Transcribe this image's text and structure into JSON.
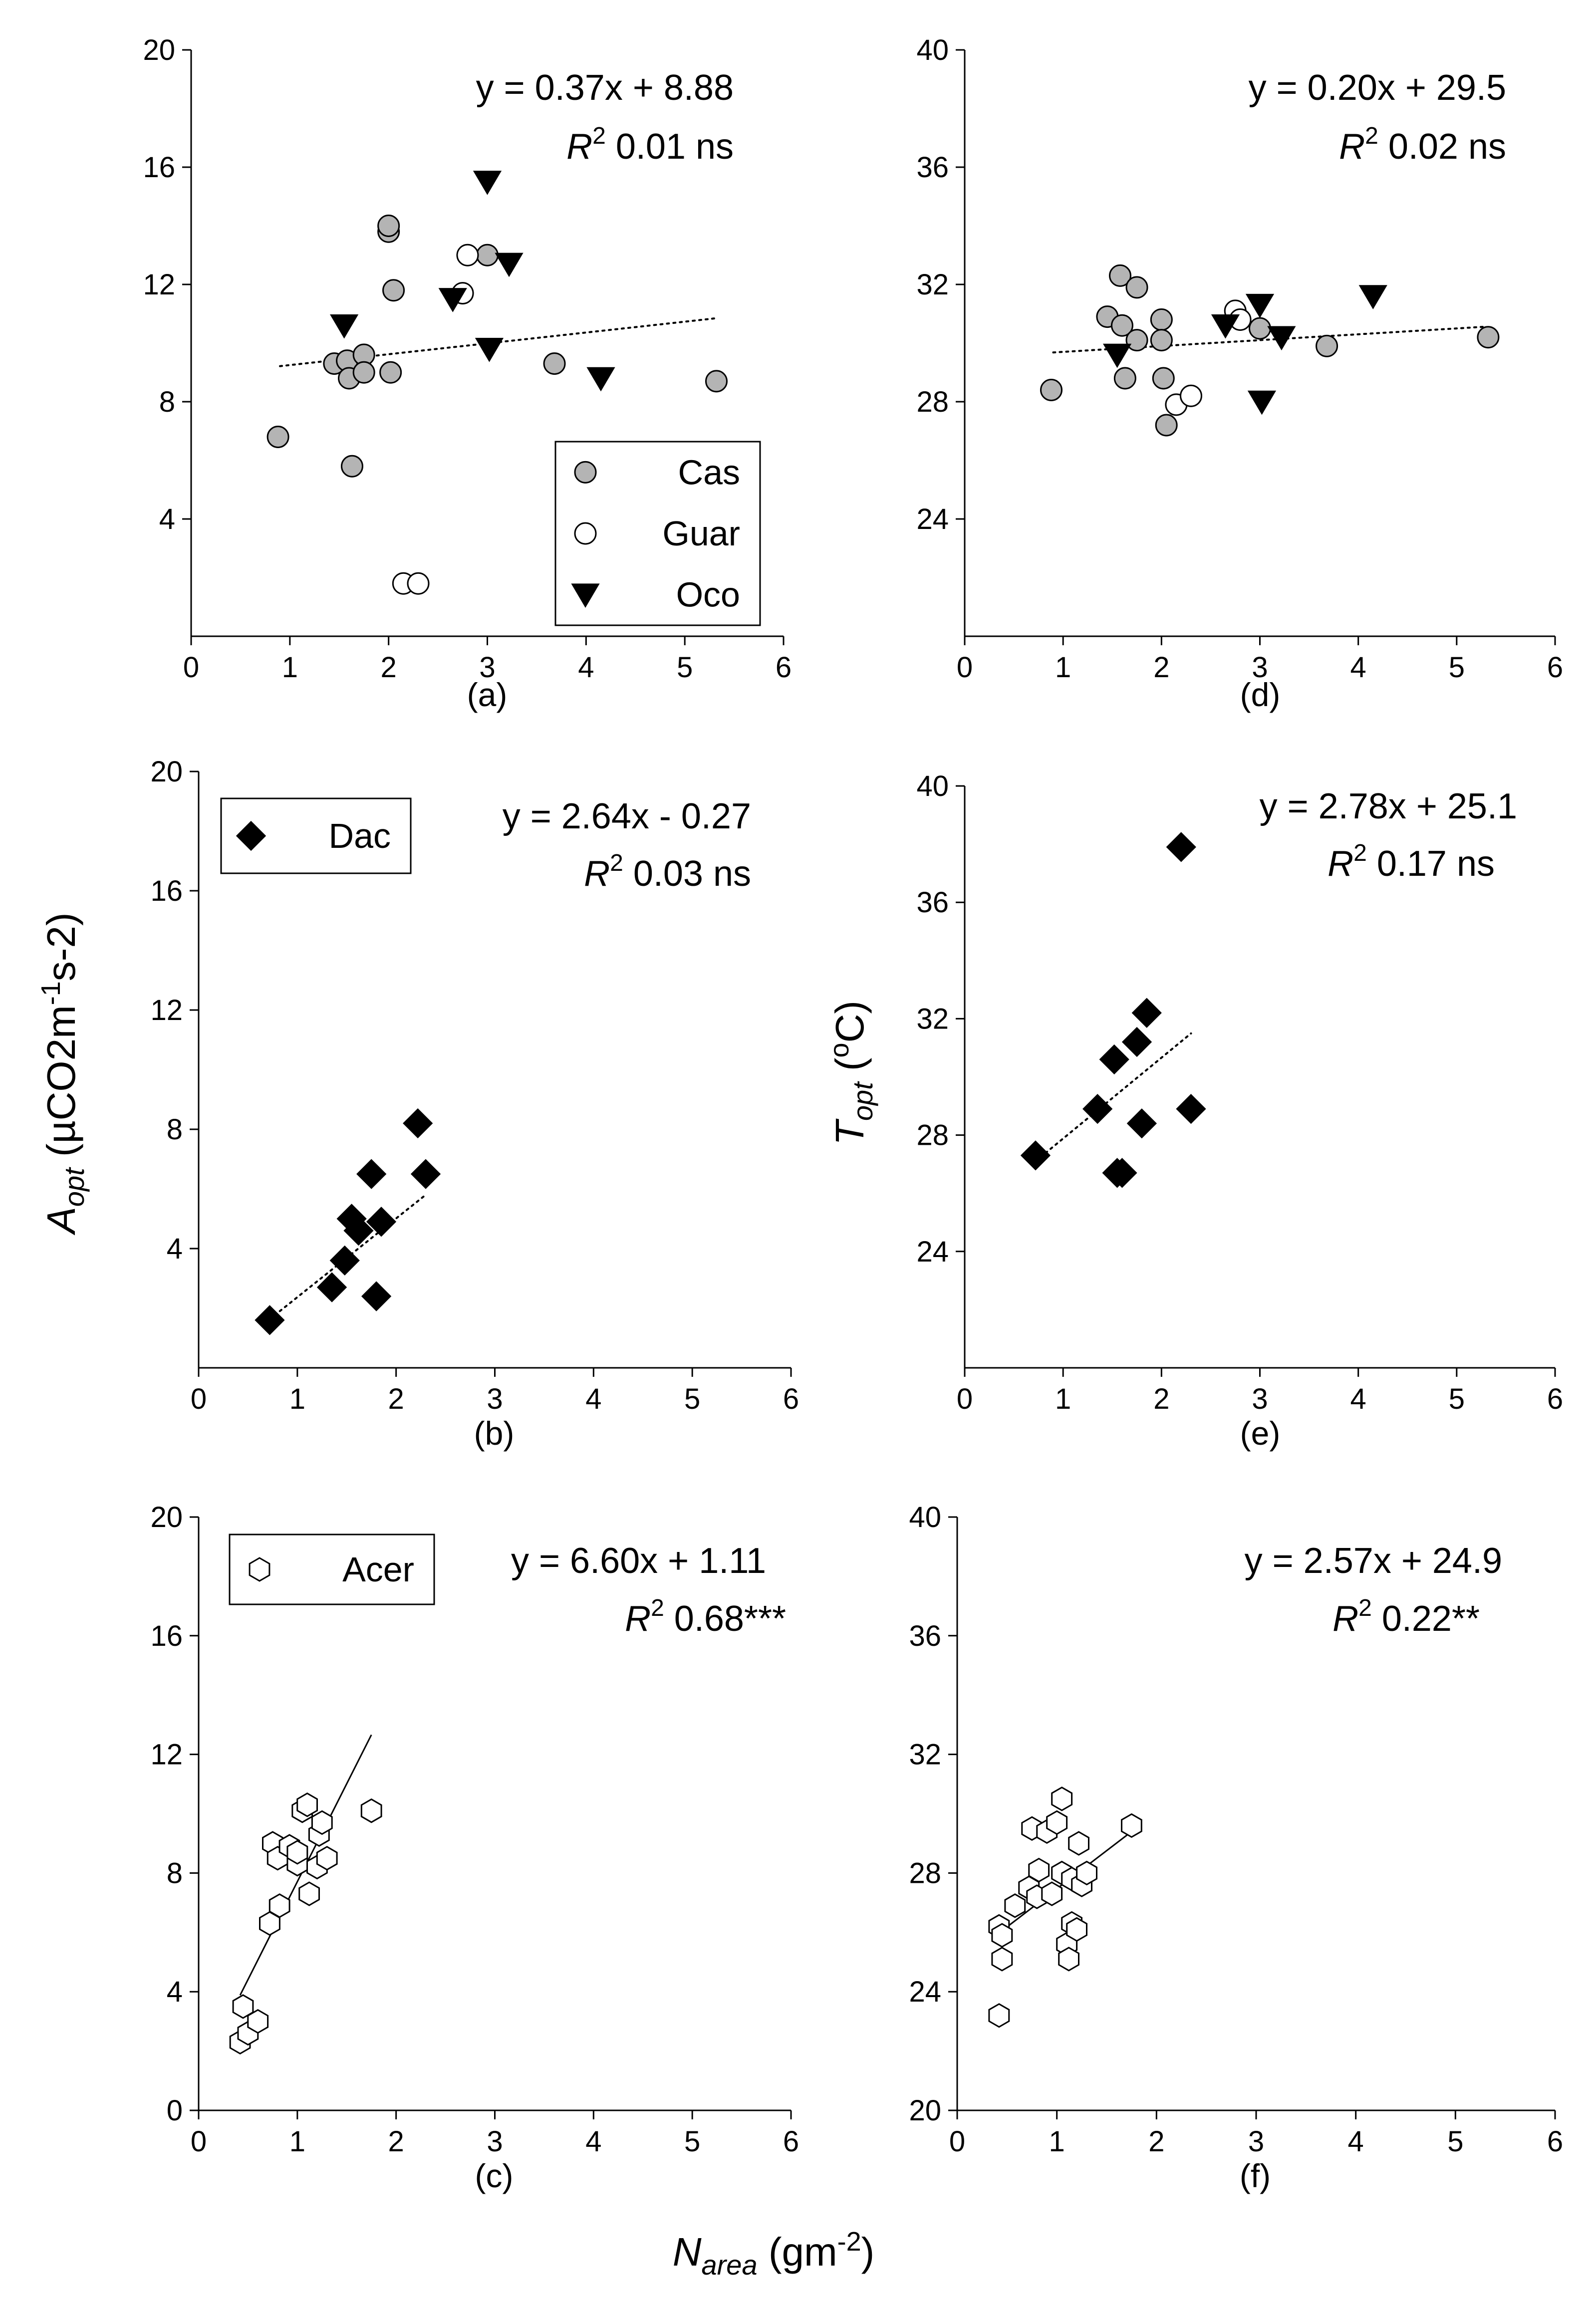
{
  "figure": {
    "shared_xlabel": {
      "main": "N",
      "sub": "area",
      "rest": " (gm",
      "sup": "-2",
      "close": ")"
    }
  },
  "ylabels": {
    "aopt": {
      "main": "A",
      "sub": "opt",
      "rest": " (µCO2m",
      "sup1": "-1",
      "mid": "s-2)"
    },
    "topt": {
      "main": "T",
      "sub": "opt",
      "rest": " (",
      "sup": "o",
      "tail": "C)"
    }
  },
  "series_styles": {
    "Cas": {
      "marker": "circle",
      "fill": "#b4b4b4",
      "stroke": "#000000"
    },
    "Guar": {
      "marker": "circle",
      "fill": "#ffffff",
      "stroke": "#000000"
    },
    "Oco": {
      "marker": "triangle-down",
      "fill": "#000000",
      "stroke": "#000000"
    },
    "Dac": {
      "marker": "diamond",
      "fill": "#000000",
      "stroke": "#000000"
    },
    "Acer": {
      "marker": "hexagon",
      "fill": "#ffffff",
      "stroke": "#000000"
    }
  },
  "chart_data": [
    {
      "id": "a",
      "type": "scatter",
      "panel_label": "(a)",
      "ylabel_key": "aopt",
      "xlim": [
        0,
        6
      ],
      "ylim": [
        0,
        20
      ],
      "xticks": [
        0,
        1,
        2,
        3,
        4,
        5,
        6
      ],
      "yticks": [
        4,
        8,
        12,
        16,
        20
      ],
      "equation": "y = 0.37x + 8.88",
      "r2_label": "R",
      "r2_sup": "2",
      "r2_value": " 0.01 ns",
      "fit": {
        "style": "dotted",
        "x": [
          0.9,
          5.3
        ]
      },
      "legend": {
        "position": "bottom-right",
        "entries": [
          "Cas",
          "Guar",
          "Oco"
        ]
      },
      "series": [
        {
          "name": "Cas",
          "points": [
            [
              0.88,
              6.8
            ],
            [
              1.45,
              9.3
            ],
            [
              1.58,
              9.4
            ],
            [
              1.6,
              8.8
            ],
            [
              1.63,
              5.8
            ],
            [
              1.75,
              9.6
            ],
            [
              1.75,
              9.0
            ],
            [
              2.0,
              13.8
            ],
            [
              2.0,
              14.0
            ],
            [
              2.02,
              9.0
            ],
            [
              2.05,
              11.8
            ],
            [
              3.0,
              13.0
            ],
            [
              3.68,
              9.3
            ],
            [
              5.32,
              8.7
            ]
          ]
        },
        {
          "name": "Guar",
          "points": [
            [
              2.15,
              1.8
            ],
            [
              2.3,
              1.8
            ],
            [
              2.75,
              11.7
            ],
            [
              2.8,
              13.0
            ]
          ]
        },
        {
          "name": "Oco",
          "points": [
            [
              1.55,
              10.6
            ],
            [
              2.65,
              11.5
            ],
            [
              3.0,
              15.5
            ],
            [
              3.02,
              9.8
            ],
            [
              3.22,
              12.7
            ],
            [
              4.15,
              8.8
            ]
          ]
        }
      ]
    },
    {
      "id": "d",
      "type": "scatter",
      "panel_label": "(d)",
      "ylabel_key": null,
      "xlim": [
        0,
        6
      ],
      "ylim": [
        20,
        40
      ],
      "xticks": [
        0,
        1,
        2,
        3,
        4,
        5,
        6
      ],
      "yticks": [
        24,
        28,
        32,
        36,
        40
      ],
      "equation": "y = 0.20x + 29.5",
      "r2_label": "R",
      "r2_sup": "2",
      "r2_value": " 0.02 ns",
      "fit": {
        "style": "dotted",
        "x": [
          0.9,
          5.3
        ]
      },
      "legend": null,
      "series": [
        {
          "name": "Cas",
          "points": [
            [
              0.88,
              28.4
            ],
            [
              1.45,
              30.9
            ],
            [
              1.58,
              32.3
            ],
            [
              1.6,
              30.6
            ],
            [
              1.63,
              28.8
            ],
            [
              1.75,
              31.9
            ],
            [
              1.75,
              30.1
            ],
            [
              2.0,
              30.8
            ],
            [
              2.0,
              30.1
            ],
            [
              2.02,
              28.8
            ],
            [
              2.05,
              27.2
            ],
            [
              3.0,
              30.5
            ],
            [
              3.68,
              29.9
            ],
            [
              5.32,
              30.2
            ]
          ]
        },
        {
          "name": "Guar",
          "points": [
            [
              2.15,
              27.9
            ],
            [
              2.3,
              28.2
            ],
            [
              2.75,
              31.1
            ],
            [
              2.8,
              30.8
            ]
          ]
        },
        {
          "name": "Oco",
          "points": [
            [
              1.55,
              29.6
            ],
            [
              2.65,
              30.6
            ],
            [
              3.0,
              31.3
            ],
            [
              3.02,
              28.0
            ],
            [
              3.22,
              30.2
            ],
            [
              4.15,
              31.6
            ]
          ]
        }
      ]
    },
    {
      "id": "b",
      "type": "scatter",
      "panel_label": "(b)",
      "ylabel_key": "aopt",
      "xlim": [
        0,
        6
      ],
      "ylim": [
        0,
        20
      ],
      "xticks": [
        0,
        1,
        2,
        3,
        4,
        5,
        6
      ],
      "yticks": [
        4,
        8,
        12,
        16,
        20
      ],
      "equation": "y = 2.64x - 0.27",
      "r2_label": "R",
      "r2_sup": "2",
      "r2_value": " 0.03 ns",
      "fit": {
        "style": "dotted",
        "x": [
          0.72,
          2.3
        ]
      },
      "legend": {
        "position": "top-left",
        "entries": [
          "Dac"
        ]
      },
      "series": [
        {
          "name": "Dac",
          "points": [
            [
              0.72,
              1.6
            ],
            [
              1.35,
              2.7
            ],
            [
              1.48,
              3.6
            ],
            [
              1.55,
              5.0
            ],
            [
              1.62,
              4.6
            ],
            [
              1.75,
              6.5
            ],
            [
              1.8,
              2.4
            ],
            [
              1.85,
              4.9
            ],
            [
              2.22,
              8.2
            ],
            [
              2.3,
              6.5
            ]
          ]
        }
      ]
    },
    {
      "id": "e",
      "type": "scatter",
      "panel_label": "(e)",
      "ylabel_key": "topt",
      "xlim": [
        0,
        6
      ],
      "ylim": [
        20,
        40
      ],
      "xticks": [
        0,
        1,
        2,
        3,
        4,
        5,
        6
      ],
      "yticks": [
        24,
        28,
        32,
        36,
        40
      ],
      "equation": "y = 2.78x + 25.1",
      "r2_label": "R",
      "r2_sup": "2",
      "r2_value": " 0.17 ns",
      "fit": {
        "style": "dotted",
        "x": [
          0.72,
          2.3
        ]
      },
      "legend": null,
      "series": [
        {
          "name": "Dac",
          "points": [
            [
              0.72,
              27.3
            ],
            [
              1.35,
              28.9
            ],
            [
              1.52,
              30.6
            ],
            [
              1.55,
              26.7
            ],
            [
              1.6,
              26.7
            ],
            [
              1.75,
              31.2
            ],
            [
              1.8,
              28.4
            ],
            [
              1.85,
              32.2
            ],
            [
              2.2,
              37.9
            ],
            [
              2.3,
              28.9
            ]
          ]
        }
      ]
    },
    {
      "id": "c",
      "type": "scatter",
      "panel_label": "(c)",
      "ylabel_key": null,
      "xlim": [
        0,
        6
      ],
      "ylim": [
        0,
        20
      ],
      "xticks": [
        0,
        1,
        2,
        3,
        4,
        5,
        6
      ],
      "yticks": [
        0,
        4,
        8,
        12,
        16,
        20
      ],
      "equation": "y = 6.60x + 1.11",
      "r2_label": "R",
      "r2_sup": "2",
      "r2_value": " 0.68***",
      "fit": {
        "style": "solid",
        "x": [
          0.42,
          1.75
        ]
      },
      "legend": {
        "position": "top-left",
        "entries": [
          "Acer"
        ]
      },
      "series": [
        {
          "name": "Acer",
          "points": [
            [
              0.42,
              2.3
            ],
            [
              0.45,
              3.5
            ],
            [
              0.5,
              2.6
            ],
            [
              0.6,
              3.0
            ],
            [
              0.72,
              6.3
            ],
            [
              0.75,
              9.0
            ],
            [
              0.8,
              8.5
            ],
            [
              0.82,
              6.9
            ],
            [
              0.92,
              8.9
            ],
            [
              1.0,
              8.3
            ],
            [
              1.0,
              8.7
            ],
            [
              1.05,
              10.1
            ],
            [
              1.1,
              10.3
            ],
            [
              1.12,
              7.3
            ],
            [
              1.2,
              8.2
            ],
            [
              1.22,
              9.3
            ],
            [
              1.25,
              9.7
            ],
            [
              1.3,
              8.5
            ],
            [
              1.75,
              10.1
            ]
          ]
        }
      ]
    },
    {
      "id": "f",
      "type": "scatter",
      "panel_label": "(f)",
      "ylabel_key": null,
      "xlim": [
        0,
        6
      ],
      "ylim": [
        20,
        40
      ],
      "xticks": [
        0,
        1,
        2,
        3,
        4,
        5,
        6
      ],
      "yticks": [
        20,
        24,
        28,
        32,
        36,
        40
      ],
      "equation": "y = 2.57x + 24.9",
      "r2_label": "R",
      "r2_sup": "2",
      "r2_value": " 0.22**",
      "fit": {
        "style": "solid",
        "x": [
          0.42,
          1.75
        ]
      },
      "legend": null,
      "series": [
        {
          "name": "Acer",
          "points": [
            [
              0.42,
              26.2
            ],
            [
              0.42,
              23.2
            ],
            [
              0.45,
              25.9
            ],
            [
              0.45,
              25.1
            ],
            [
              0.58,
              26.9
            ],
            [
              0.72,
              27.5
            ],
            [
              0.75,
              29.5
            ],
            [
              0.8,
              27.2
            ],
            [
              0.82,
              28.1
            ],
            [
              0.9,
              29.4
            ],
            [
              0.95,
              27.3
            ],
            [
              1.0,
              29.7
            ],
            [
              1.05,
              30.5
            ],
            [
              1.05,
              28.0
            ],
            [
              1.1,
              25.6
            ],
            [
              1.12,
              25.1
            ],
            [
              1.15,
              26.3
            ],
            [
              1.15,
              27.8
            ],
            [
              1.2,
              26.1
            ],
            [
              1.22,
              29.0
            ],
            [
              1.25,
              27.6
            ],
            [
              1.3,
              28.0
            ],
            [
              1.75,
              29.6
            ]
          ]
        }
      ]
    }
  ]
}
